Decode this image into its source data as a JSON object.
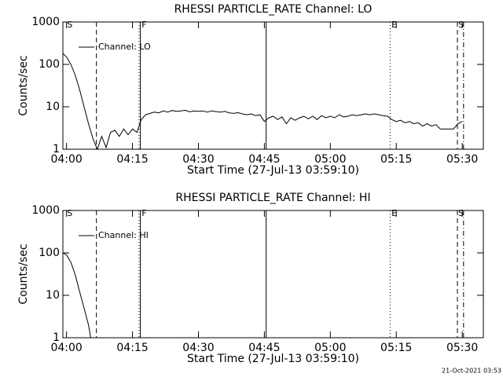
{
  "chart_data": [
    {
      "type": "line",
      "title": "RHESSI PARTICLE_RATE Channel: LO",
      "xlabel": "Start Time (27-Jul-13 03:59:10)",
      "ylabel": "Counts/sec",
      "log_y": true,
      "xlim": [
        -0.83,
        94.8
      ],
      "ylim": [
        1,
        1000
      ],
      "yticks": [
        1,
        10,
        100,
        1000
      ],
      "xticks": [
        {
          "value": 0,
          "label": "04:00"
        },
        {
          "value": 15,
          "label": "04:15"
        },
        {
          "value": 30,
          "label": "04:30"
        },
        {
          "value": 45,
          "label": "04:45"
        },
        {
          "value": 60,
          "label": "05:00"
        },
        {
          "value": 75,
          "label": "05:15"
        },
        {
          "value": 90,
          "label": "05:30"
        }
      ],
      "markers": [
        {
          "x": 6.8,
          "style": "dashed"
        },
        {
          "x": 16.5,
          "style": "dotted"
        },
        {
          "x": 16.8,
          "style": "solid"
        },
        {
          "x": 45.4,
          "style": "solid"
        },
        {
          "x": 73.6,
          "style": "dotted"
        },
        {
          "x": 88.9,
          "style": "dashed"
        },
        {
          "x": 90.3,
          "style": "dashdot"
        }
      ],
      "annotations": [
        {
          "text": "S",
          "x": 0.1
        },
        {
          "text": "F",
          "x": 17.1
        },
        {
          "text": "E",
          "x": 73.9
        },
        {
          "text": "S",
          "x": 89.1
        }
      ],
      "x": [
        -0.8,
        0,
        1,
        2,
        3,
        4,
        5,
        6,
        7,
        8,
        9,
        10,
        11,
        12,
        13,
        14,
        15,
        16,
        17,
        18,
        19,
        20,
        21,
        22,
        23,
        24,
        25,
        26,
        27,
        28,
        29,
        30,
        31,
        32,
        33,
        34,
        35,
        36,
        37,
        38,
        39,
        40,
        41,
        42,
        43,
        44,
        45,
        46,
        47,
        48,
        49,
        50,
        51,
        52,
        53,
        54,
        55,
        56,
        57,
        58,
        59,
        60,
        61,
        62,
        63,
        64,
        65,
        66,
        67,
        68,
        69,
        70,
        71,
        72,
        73,
        74,
        75,
        76,
        77,
        78,
        79,
        80,
        81,
        82,
        83,
        84,
        85,
        86,
        87,
        88,
        89,
        90
      ],
      "series": [
        {
          "name": "Channel: LO",
          "color": "#000000",
          "values": [
            180,
            150,
            100,
            55,
            25,
            10,
            4,
            1.8,
            1.0,
            2.0,
            1.1,
            2.5,
            2.8,
            2.0,
            3.0,
            2.2,
            3.0,
            2.5,
            5.0,
            6.5,
            7.0,
            7.5,
            7.2,
            8.0,
            7.5,
            8.2,
            7.8,
            8.0,
            8.3,
            7.6,
            8.0,
            7.8,
            8.0,
            7.5,
            8.0,
            7.7,
            7.5,
            7.8,
            7.2,
            7.0,
            7.3,
            6.8,
            6.5,
            6.8,
            6.2,
            6.5,
            4.5,
            5.5,
            6.0,
            5.0,
            5.8,
            4.0,
            5.5,
            4.8,
            5.5,
            6.0,
            5.2,
            6.0,
            5.0,
            6.2,
            5.5,
            6.0,
            5.5,
            6.5,
            5.8,
            6.0,
            6.5,
            6.2,
            6.5,
            6.8,
            6.5,
            6.8,
            6.5,
            6.2,
            6.0,
            5.0,
            4.5,
            4.8,
            4.2,
            4.5,
            4.0,
            4.2,
            3.5,
            4.0,
            3.5,
            3.8,
            3.0,
            3.0,
            3.0,
            3.0,
            4.0,
            4.5
          ]
        }
      ]
    },
    {
      "type": "line",
      "title": "RHESSI PARTICLE_RATE Channel: HI",
      "xlabel": "Start Time (27-Jul-13 03:59:10)",
      "ylabel": "Counts/sec",
      "log_y": true,
      "xlim": [
        -0.83,
        94.8
      ],
      "ylim": [
        1,
        1000
      ],
      "yticks": [
        1,
        10,
        100,
        1000
      ],
      "xticks": [
        {
          "value": 0,
          "label": "04:00"
        },
        {
          "value": 15,
          "label": "04:15"
        },
        {
          "value": 30,
          "label": "04:30"
        },
        {
          "value": 45,
          "label": "04:45"
        },
        {
          "value": 60,
          "label": "05:00"
        },
        {
          "value": 75,
          "label": "05:15"
        },
        {
          "value": 90,
          "label": "05:30"
        }
      ],
      "markers": [
        {
          "x": 6.8,
          "style": "dashed"
        },
        {
          "x": 16.5,
          "style": "dotted"
        },
        {
          "x": 16.8,
          "style": "solid"
        },
        {
          "x": 45.4,
          "style": "solid"
        },
        {
          "x": 73.6,
          "style": "dotted"
        },
        {
          "x": 88.9,
          "style": "dashed"
        },
        {
          "x": 90.3,
          "style": "dashdot"
        }
      ],
      "annotations": [
        {
          "text": "S",
          "x": 0.1
        },
        {
          "text": "F",
          "x": 17.1
        },
        {
          "text": "E",
          "x": 73.9
        },
        {
          "text": "S",
          "x": 89.1
        }
      ],
      "x": [
        -0.8,
        0,
        1,
        2,
        3,
        4,
        5,
        5.5
      ],
      "series": [
        {
          "name": "Channel: HI",
          "color": "#000000",
          "values": [
            100,
            90,
            60,
            30,
            12,
            5,
            2,
            1.0
          ]
        }
      ]
    }
  ],
  "footer": "21-Oct-2021 03:53"
}
